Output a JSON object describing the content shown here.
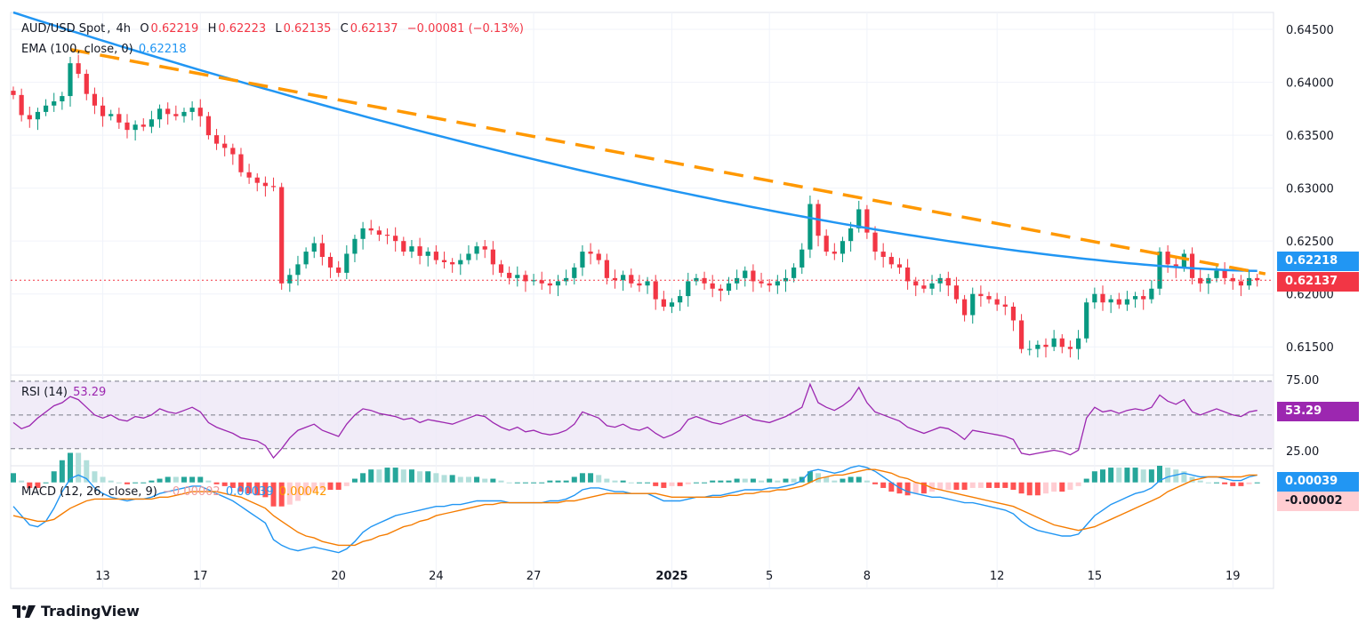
{
  "header": {
    "symbol": "AUD/USD Spot",
    "timeframe": "4h",
    "open_label": "O",
    "open": "0.62219",
    "high_label": "H",
    "high": "0.62223",
    "low_label": "L",
    "low": "0.62135",
    "close_label": "C",
    "close": "0.62137",
    "change": "−0.00081 (−0.13%)"
  },
  "ema_legend": {
    "label": "EMA (100, close, 0)",
    "value": "0.62218"
  },
  "rsi_legend": {
    "label": "RSI (14)",
    "value": "53.29"
  },
  "macd_legend": {
    "label": "MACD (12, 26, close, 9)",
    "hist": "−0.00002",
    "macd": "0.00039",
    "signal": "0.00042"
  },
  "price_tags": {
    "ema": "0.62218",
    "last": "0.62137",
    "rsi": "53.29",
    "macd": "0.00039",
    "hist": "-0.00002"
  },
  "colors": {
    "up": "#089981",
    "down": "#f23645",
    "ema": "#2196f3",
    "trend": "#ff9800",
    "rsi": "#9c27b0",
    "rsi_band": "#ede7f6",
    "macd": "#2196f3",
    "signal": "#f57c00",
    "hist_up_strong": "#26a69a",
    "hist_up_weak": "#b2dfdb",
    "hist_dn_strong": "#ff5252",
    "hist_dn_weak": "#ffcdd2"
  },
  "footer": {
    "brand": "TradingView",
    "logo_icon": "tradingview-logo-icon"
  },
  "chart_data": {
    "type": "line",
    "title": "AUD/USD Spot, 4h",
    "price_axis": {
      "ticks": [
        "0.64500",
        "0.64000",
        "0.63500",
        "0.63000",
        "0.62500",
        "0.62000",
        "0.61500"
      ],
      "ylim": [
        0.6125,
        0.6466
      ]
    },
    "x_ticks": [
      {
        "label": "13",
        "index": 11
      },
      {
        "label": "17",
        "index": 23
      },
      {
        "label": "20",
        "index": 40
      },
      {
        "label": "24",
        "index": 52
      },
      {
        "label": "27",
        "index": 64
      },
      {
        "label": "2025",
        "index": 81,
        "bold": true
      },
      {
        "label": "5",
        "index": 93
      },
      {
        "label": "8",
        "index": 105
      },
      {
        "label": "12",
        "index": 121
      },
      {
        "label": "15",
        "index": 133
      },
      {
        "label": "19",
        "index": 150
      }
    ],
    "candles_count": 154,
    "price_series": [
      0.6388,
      0.6369,
      0.6365,
      0.6372,
      0.6378,
      0.6382,
      0.6387,
      0.6418,
      0.6408,
      0.6389,
      0.6378,
      0.6368,
      0.637,
      0.6362,
      0.6355,
      0.636,
      0.6358,
      0.6365,
      0.6375,
      0.637,
      0.6368,
      0.6372,
      0.6376,
      0.6368,
      0.635,
      0.6342,
      0.6338,
      0.6332,
      0.6315,
      0.631,
      0.6305,
      0.6302,
      0.6301,
      0.621,
      0.6218,
      0.6228,
      0.624,
      0.6248,
      0.6235,
      0.6225,
      0.622,
      0.6238,
      0.6252,
      0.6262,
      0.626,
      0.6256,
      0.6255,
      0.625,
      0.624,
      0.6245,
      0.6236,
      0.624,
      0.6232,
      0.623,
      0.6228,
      0.6232,
      0.6238,
      0.6245,
      0.6242,
      0.6228,
      0.622,
      0.6215,
      0.6218,
      0.6212,
      0.6213,
      0.621,
      0.6208,
      0.6212,
      0.6215,
      0.6225,
      0.624,
      0.6238,
      0.6232,
      0.6215,
      0.6213,
      0.6218,
      0.621,
      0.6208,
      0.6212,
      0.6195,
      0.6188,
      0.6192,
      0.6198,
      0.6212,
      0.6215,
      0.621,
      0.6205,
      0.6203,
      0.621,
      0.6215,
      0.6222,
      0.6212,
      0.621,
      0.6208,
      0.6212,
      0.6215,
      0.6225,
      0.6242,
      0.6285,
      0.6255,
      0.624,
      0.6238,
      0.625,
      0.6262,
      0.628,
      0.6258,
      0.624,
      0.6235,
      0.6228,
      0.6225,
      0.6212,
      0.6208,
      0.6205,
      0.621,
      0.6215,
      0.6208,
      0.6195,
      0.618,
      0.62,
      0.6198,
      0.6195,
      0.619,
      0.6188,
      0.6175,
      0.6148,
      0.6148,
      0.6152,
      0.615,
      0.6158,
      0.615,
      0.6148,
      0.6158,
      0.6192,
      0.62,
      0.6192,
      0.6195,
      0.619,
      0.6195,
      0.6198,
      0.6195,
      0.6205,
      0.624,
      0.6228,
      0.6225,
      0.6238,
      0.6215,
      0.621,
      0.6215,
      0.6222,
      0.6215,
      0.6212,
      0.6208,
      0.6215,
      0.6213
    ],
    "ema_100": {
      "start": 0.6466,
      "end": 0.62218
    },
    "trendline": {
      "from": {
        "index": 7,
        "price": 0.6431
      },
      "to": {
        "index": 154,
        "price": 0.6219
      }
    },
    "rsi": {
      "levels": [
        "75.00",
        "25.00"
      ],
      "ylim": [
        18,
        76
      ],
      "values": [
        45,
        41,
        43,
        48,
        52,
        56,
        58,
        62,
        60,
        55,
        50,
        48,
        50,
        47,
        46,
        49,
        48,
        50,
        54,
        52,
        51,
        53,
        55,
        52,
        45,
        42,
        40,
        38,
        35,
        34,
        33,
        30,
        22,
        28,
        35,
        40,
        42,
        44,
        40,
        38,
        36,
        44,
        50,
        54,
        53,
        51,
        50,
        49,
        47,
        48,
        45,
        47,
        46,
        45,
        44,
        46,
        48,
        50,
        49,
        45,
        42,
        40,
        42,
        39,
        40,
        38,
        37,
        38,
        40,
        44,
        52,
        50,
        48,
        43,
        42,
        44,
        41,
        40,
        42,
        38,
        35,
        37,
        40,
        47,
        49,
        47,
        45,
        44,
        46,
        48,
        50,
        47,
        46,
        45,
        47,
        49,
        52,
        55,
        70,
        58,
        55,
        53,
        56,
        60,
        68,
        58,
        52,
        50,
        48,
        46,
        42,
        40,
        38,
        40,
        42,
        41,
        38,
        34,
        40,
        39,
        38,
        37,
        36,
        34,
        25,
        24,
        25,
        26,
        27,
        26,
        24,
        27,
        48,
        55,
        52,
        53,
        51,
        53,
        54,
        53,
        55,
        63,
        59,
        57,
        60,
        52,
        50,
        52,
        54,
        52,
        50,
        49,
        52,
        53
      ]
    },
    "macd": {
      "ylim": [
        -0.0042,
        0.0009
      ],
      "macd_line": [
        -0.0013,
        -0.0018,
        -0.0023,
        -0.0024,
        -0.0021,
        -0.0014,
        -0.0005,
        0.0002,
        0.0004,
        0.0002,
        -0.0003,
        -0.0006,
        -0.0008,
        -0.0009,
        -0.001,
        -0.0009,
        -0.0009,
        -0.0008,
        -0.0006,
        -0.0005,
        -0.0004,
        -0.0003,
        -0.0002,
        -0.0002,
        -0.0004,
        -0.0006,
        -0.0008,
        -0.001,
        -0.0013,
        -0.0016,
        -0.0019,
        -0.0022,
        -0.0031,
        -0.0034,
        -0.0036,
        -0.0037,
        -0.0036,
        -0.0035,
        -0.0036,
        -0.0037,
        -0.0038,
        -0.0036,
        -0.0032,
        -0.0027,
        -0.0024,
        -0.0022,
        -0.002,
        -0.0018,
        -0.0017,
        -0.0016,
        -0.0015,
        -0.0014,
        -0.0013,
        -0.0013,
        -0.0012,
        -0.0012,
        -0.0011,
        -0.001,
        -0.001,
        -0.001,
        -0.001,
        -0.0011,
        -0.0011,
        -0.0011,
        -0.0011,
        -0.0011,
        -0.001,
        -0.001,
        -0.0009,
        -0.0007,
        -0.0004,
        -0.0003,
        -0.0003,
        -0.0004,
        -0.0005,
        -0.0005,
        -0.0006,
        -0.0006,
        -0.0006,
        -0.0008,
        -0.001,
        -0.001,
        -0.001,
        -0.0009,
        -0.0008,
        -0.0008,
        -0.0007,
        -0.0007,
        -0.0006,
        -0.0005,
        -0.0004,
        -0.0004,
        -0.0004,
        -0.0003,
        -0.0003,
        -0.0002,
        -0.0001,
        0.0001,
        0.0006,
        0.0007,
        0.0006,
        0.0005,
        0.0006,
        0.0008,
        0.0009,
        0.0008,
        0.0006,
        0.0003,
        0.0,
        -0.0003,
        -0.0005,
        -0.0006,
        -0.0007,
        -0.0008,
        -0.0008,
        -0.0009,
        -0.001,
        -0.0011,
        -0.0011,
        -0.0012,
        -0.0013,
        -0.0014,
        -0.0015,
        -0.0017,
        -0.0021,
        -0.0024,
        -0.0026,
        -0.0027,
        -0.0028,
        -0.0029,
        -0.0029,
        -0.0028,
        -0.0023,
        -0.0018,
        -0.0015,
        -0.0012,
        -0.001,
        -0.0008,
        -0.0006,
        -0.0005,
        -0.0003,
        0.0001,
        0.0003,
        0.0004,
        0.0005,
        0.0004,
        0.0003,
        0.0003,
        0.0003,
        0.0002,
        0.0001,
        0.0001,
        0.0003,
        0.0004
      ],
      "signal_line": [
        -0.0018,
        -0.0019,
        -0.002,
        -0.0021,
        -0.0021,
        -0.002,
        -0.0017,
        -0.0014,
        -0.0012,
        -0.001,
        -0.0009,
        -0.0009,
        -0.0009,
        -0.0009,
        -0.0009,
        -0.0009,
        -0.0009,
        -0.0009,
        -0.0008,
        -0.0008,
        -0.0007,
        -0.0006,
        -0.0005,
        -0.0005,
        -0.0005,
        -0.0005,
        -0.0006,
        -0.0007,
        -0.0008,
        -0.001,
        -0.0012,
        -0.0014,
        -0.0018,
        -0.0021,
        -0.0024,
        -0.0027,
        -0.0029,
        -0.003,
        -0.0032,
        -0.0033,
        -0.0034,
        -0.0034,
        -0.0034,
        -0.0032,
        -0.0031,
        -0.0029,
        -0.0028,
        -0.0026,
        -0.0024,
        -0.0023,
        -0.0021,
        -0.002,
        -0.0018,
        -0.0017,
        -0.0016,
        -0.0015,
        -0.0014,
        -0.0013,
        -0.0012,
        -0.0012,
        -0.0011,
        -0.0011,
        -0.0011,
        -0.0011,
        -0.0011,
        -0.0011,
        -0.0011,
        -0.0011,
        -0.001,
        -0.001,
        -0.0009,
        -0.0008,
        -0.0007,
        -0.0006,
        -0.0006,
        -0.0006,
        -0.0006,
        -0.0006,
        -0.0006,
        -0.0006,
        -0.0007,
        -0.0008,
        -0.0008,
        -0.0008,
        -0.0008,
        -0.0008,
        -0.0008,
        -0.0008,
        -0.0007,
        -0.0007,
        -0.0006,
        -0.0006,
        -0.0005,
        -0.0005,
        -0.0004,
        -0.0004,
        -0.0003,
        -0.0002,
        0.0,
        0.0002,
        0.0003,
        0.0004,
        0.0004,
        0.0005,
        0.0006,
        0.0007,
        0.0007,
        0.0006,
        0.0005,
        0.0003,
        0.0002,
        0.0,
        -0.0001,
        -0.0003,
        -0.0004,
        -0.0005,
        -0.0006,
        -0.0007,
        -0.0008,
        -0.0009,
        -0.001,
        -0.0011,
        -0.0012,
        -0.0013,
        -0.0015,
        -0.0017,
        -0.0019,
        -0.0021,
        -0.0023,
        -0.0024,
        -0.0025,
        -0.0026,
        -0.0025,
        -0.0024,
        -0.0022,
        -0.002,
        -0.0018,
        -0.0016,
        -0.0014,
        -0.0012,
        -0.001,
        -0.0008,
        -0.0005,
        -0.0003,
        -0.0001,
        0.0001,
        0.0002,
        0.0003,
        0.0003,
        0.0003,
        0.0003,
        0.0003,
        0.0004,
        0.0004
      ]
    }
  }
}
